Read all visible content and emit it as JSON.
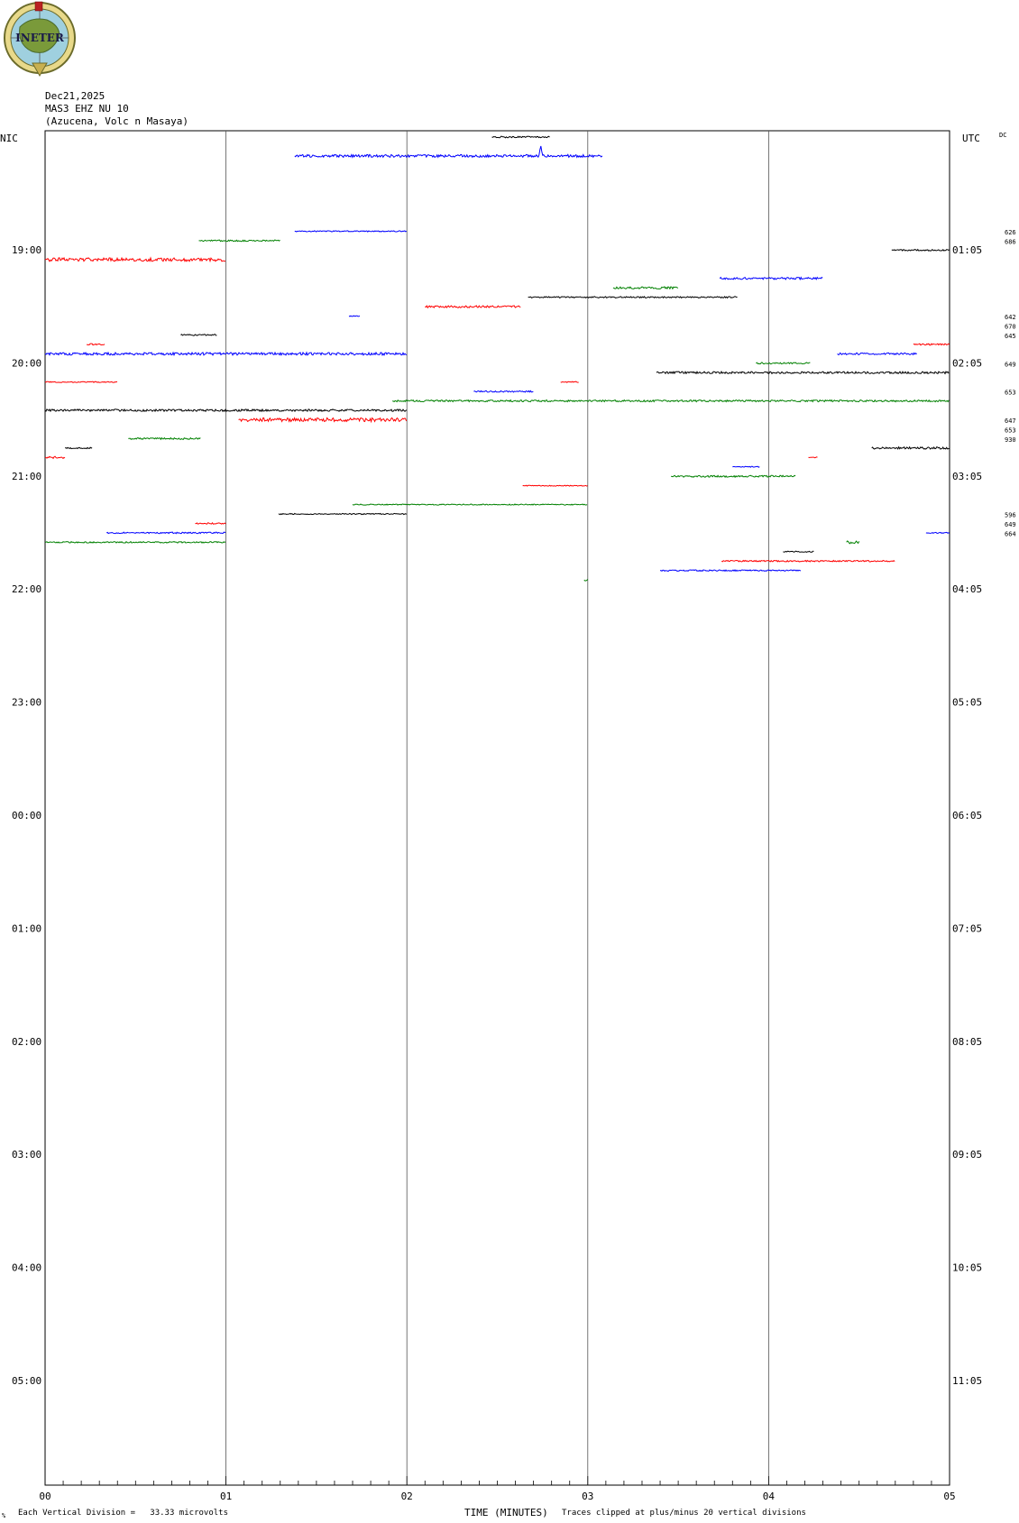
{
  "logo": {
    "text": "INETER"
  },
  "header": {
    "date": "Dec21,2025",
    "station": "MAS3 EHZ NU 10",
    "location": "(Azucena, Volc n Masaya)"
  },
  "left_tz": "NIC",
  "right_tz": "UTC",
  "dc_label": "DC",
  "footer": {
    "left": "Each Vertical Division =   33.33 microvolts",
    "center": "TIME (MINUTES)",
    "right": "Traces clipped at plus/minus 20 vertical divisions",
    "corner": "%"
  },
  "chart_data": {
    "type": "line",
    "title": "",
    "xlabel": "TIME (MINUTES)",
    "ylabel": "",
    "xlim": [
      0,
      5
    ],
    "x_ticks": [
      "00",
      "01",
      "02",
      "03",
      "04",
      "05"
    ],
    "left_time_labels": [
      "19:00",
      "20:00",
      "21:00",
      "22:00",
      "23:00",
      "00:00",
      "01:00",
      "02:00",
      "03:00",
      "04:00",
      "05:00"
    ],
    "right_time_labels": [
      "01:05",
      "02:05",
      "03:05",
      "04:05",
      "05:05",
      "06:05",
      "07:05",
      "08:05",
      "09:05",
      "10:05",
      "11:05"
    ],
    "dc_offsets": [
      {
        "row": 11.2,
        "value": "626"
      },
      {
        "row": 12.2,
        "value": "686"
      },
      {
        "row": 20.2,
        "value": "642"
      },
      {
        "row": 21.2,
        "value": "670"
      },
      {
        "row": 22.2,
        "value": "645"
      },
      {
        "row": 25.2,
        "value": "649"
      },
      {
        "row": 28.2,
        "value": "653"
      },
      {
        "row": 31.2,
        "value": "647"
      },
      {
        "row": 32.2,
        "value": "653"
      },
      {
        "row": 33.2,
        "value": "930"
      },
      {
        "row": 41.2,
        "value": "596"
      },
      {
        "row": 42.2,
        "value": "649"
      },
      {
        "row": 43.2,
        "value": "664"
      }
    ],
    "trace_colors": [
      "#000000",
      "#ff0000",
      "#0000ff",
      "#008000"
    ],
    "segments": [
      {
        "row": 0,
        "color": "#000000",
        "x0": 2.47,
        "x1": 2.79,
        "noise": 0.8
      },
      {
        "row": 2,
        "color": "#0000ff",
        "x0": 1.38,
        "x1": 3.08,
        "noise": 1.5,
        "spike": 2.74
      },
      {
        "row": 10,
        "color": "#0000ff",
        "x0": 1.38,
        "x1": 2.0,
        "noise": 0.6
      },
      {
        "row": 11,
        "color": "#008000",
        "x0": 0.85,
        "x1": 1.3,
        "noise": 0.8
      },
      {
        "row": 12,
        "color": "#000000",
        "x0": 4.68,
        "x1": 5.0,
        "noise": 0.8
      },
      {
        "row": 13,
        "color": "#ff0000",
        "x0": 0.0,
        "x1": 1.0,
        "noise": 2.0
      },
      {
        "row": 15,
        "color": "#0000ff",
        "x0": 3.73,
        "x1": 4.3,
        "noise": 1.2
      },
      {
        "row": 16,
        "color": "#008000",
        "x0": 3.14,
        "x1": 3.5,
        "noise": 1.2
      },
      {
        "row": 17,
        "color": "#000000",
        "x0": 2.67,
        "x1": 3.83,
        "noise": 0.8
      },
      {
        "row": 18,
        "color": "#ff0000",
        "x0": 2.1,
        "x1": 2.63,
        "noise": 1.2
      },
      {
        "row": 19,
        "color": "#0000ff",
        "x0": 1.68,
        "x1": 1.74,
        "noise": 0.5
      },
      {
        "row": 21,
        "color": "#000000",
        "x0": 0.75,
        "x1": 0.95,
        "noise": 0.8
      },
      {
        "row": 22,
        "color": "#ff0000",
        "x0": 0.23,
        "x1": 0.33,
        "noise": 0.8
      },
      {
        "row": 22,
        "color": "#ff0000",
        "x0": 4.8,
        "x1": 5.0,
        "noise": 0.8
      },
      {
        "row": 23,
        "color": "#0000ff",
        "x0": 0.0,
        "x1": 2.0,
        "noise": 1.5
      },
      {
        "row": 23,
        "color": "#0000ff",
        "x0": 4.38,
        "x1": 4.82,
        "noise": 1.0
      },
      {
        "row": 24,
        "color": "#008000",
        "x0": 3.93,
        "x1": 4.23,
        "noise": 0.8
      },
      {
        "row": 25,
        "color": "#000000",
        "x0": 3.38,
        "x1": 5.0,
        "noise": 1.2
      },
      {
        "row": 26,
        "color": "#ff0000",
        "x0": 0.0,
        "x1": 0.4,
        "noise": 0.6
      },
      {
        "row": 26,
        "color": "#ff0000",
        "x0": 2.85,
        "x1": 2.95,
        "noise": 0.6
      },
      {
        "row": 27,
        "color": "#0000ff",
        "x0": 2.37,
        "x1": 2.7,
        "noise": 0.8
      },
      {
        "row": 28,
        "color": "#008000",
        "x0": 1.92,
        "x1": 5.0,
        "noise": 1.0
      },
      {
        "row": 29,
        "color": "#000000",
        "x0": 0.0,
        "x1": 2.0,
        "noise": 1.2
      },
      {
        "row": 30,
        "color": "#ff0000",
        "x0": 1.07,
        "x1": 2.0,
        "noise": 2.0
      },
      {
        "row": 32,
        "color": "#008000",
        "x0": 0.46,
        "x1": 0.86,
        "noise": 1.0
      },
      {
        "row": 33,
        "color": "#000000",
        "x0": 0.11,
        "x1": 0.26,
        "noise": 0.8
      },
      {
        "row": 33,
        "color": "#000000",
        "x0": 4.57,
        "x1": 5.0,
        "noise": 1.2
      },
      {
        "row": 34,
        "color": "#ff0000",
        "x0": 0.0,
        "x1": 0.11,
        "noise": 1.2
      },
      {
        "row": 34,
        "color": "#ff0000",
        "x0": 4.22,
        "x1": 4.27,
        "noise": 0.6
      },
      {
        "row": 35,
        "color": "#0000ff",
        "x0": 3.8,
        "x1": 3.95,
        "noise": 0.5
      },
      {
        "row": 36,
        "color": "#008000",
        "x0": 3.46,
        "x1": 4.15,
        "noise": 1.0
      },
      {
        "row": 37,
        "color": "#ff0000",
        "x0": 2.64,
        "x1": 3.0,
        "noise": 0.5
      },
      {
        "row": 39,
        "color": "#008000",
        "x0": 1.7,
        "x1": 3.0,
        "noise": 0.6
      },
      {
        "row": 40,
        "color": "#000000",
        "x0": 1.29,
        "x1": 2.0,
        "noise": 0.6
      },
      {
        "row": 41,
        "color": "#ff0000",
        "x0": 0.83,
        "x1": 1.0,
        "noise": 0.8
      },
      {
        "row": 42,
        "color": "#0000ff",
        "x0": 0.34,
        "x1": 1.0,
        "noise": 0.8
      },
      {
        "row": 42,
        "color": "#0000ff",
        "x0": 4.87,
        "x1": 5.0,
        "noise": 0.6
      },
      {
        "row": 43,
        "color": "#008000",
        "x0": 0.0,
        "x1": 1.0,
        "noise": 0.8
      },
      {
        "row": 43,
        "color": "#008000",
        "x0": 4.43,
        "x1": 4.5,
        "noise": 1.5
      },
      {
        "row": 44,
        "color": "#000000",
        "x0": 4.08,
        "x1": 4.25,
        "noise": 0.6
      },
      {
        "row": 45,
        "color": "#ff0000",
        "x0": 3.74,
        "x1": 4.7,
        "noise": 0.8
      },
      {
        "row": 46,
        "color": "#0000ff",
        "x0": 3.4,
        "x1": 4.18,
        "noise": 0.8
      },
      {
        "row": 47,
        "color": "#008000",
        "x0": 2.98,
        "x1": 3.0,
        "noise": 1.5
      }
    ]
  }
}
